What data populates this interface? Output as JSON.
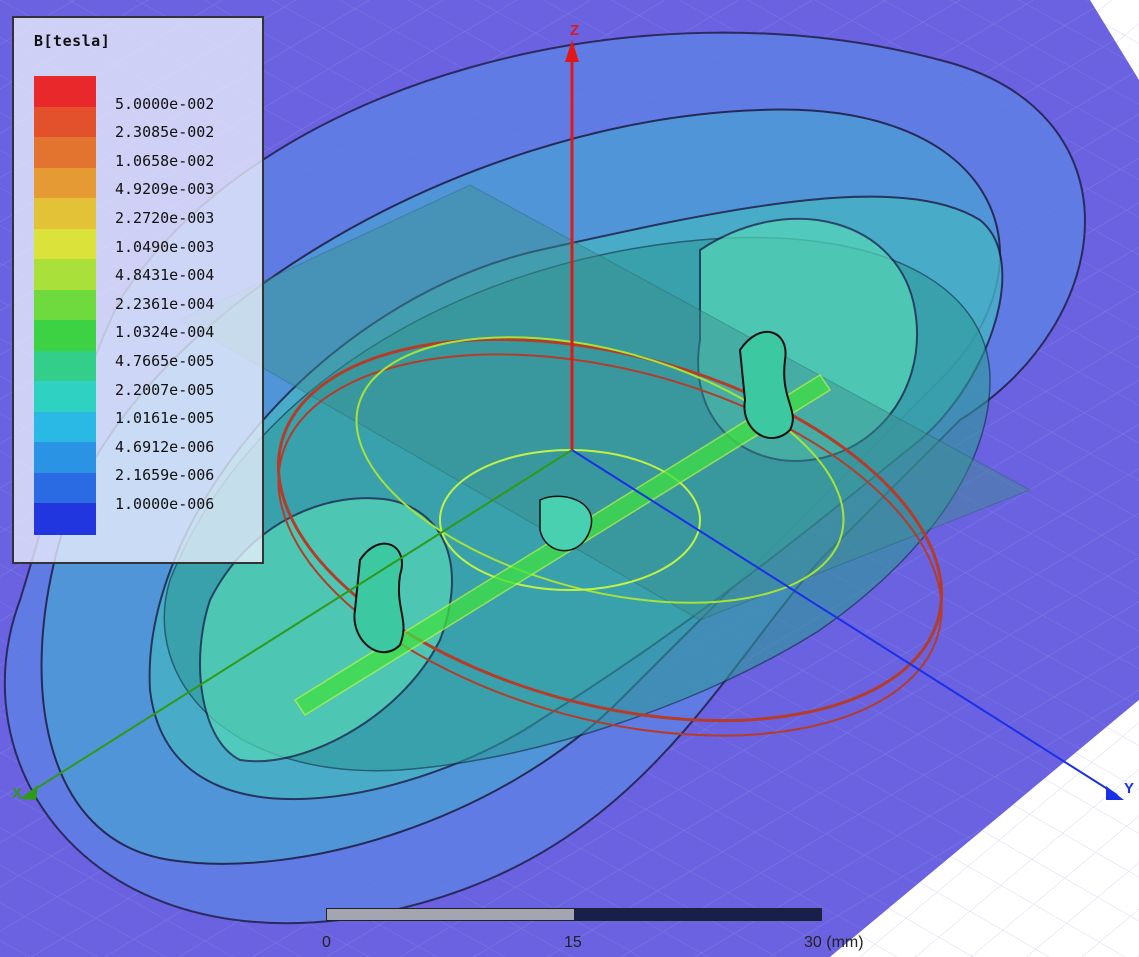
{
  "legend": {
    "title": "B[tesla]",
    "values": [
      "5.0000e-002",
      "2.3085e-002",
      "1.0658e-002",
      "4.9209e-003",
      "2.2720e-003",
      "1.0490e-003",
      "4.8431e-004",
      "2.2361e-004",
      "1.0324e-004",
      "4.7665e-005",
      "2.2007e-005",
      "1.0161e-005",
      "4.6912e-006",
      "2.1659e-006",
      "1.0000e-006"
    ],
    "colors": [
      "#e8282a",
      "#e2502c",
      "#e27430",
      "#e59a34",
      "#e4c238",
      "#dbe23a",
      "#a9e03a",
      "#6fda3e",
      "#3cd244",
      "#33cf8a",
      "#2fd1c2",
      "#2ab9e4",
      "#2a93e4",
      "#2a6ae3",
      "#2236e0"
    ]
  },
  "axes": {
    "z": "Z",
    "x": "X",
    "y": "Y"
  },
  "scale": {
    "ticks": [
      "0",
      "15",
      "30 (mm)"
    ]
  }
}
